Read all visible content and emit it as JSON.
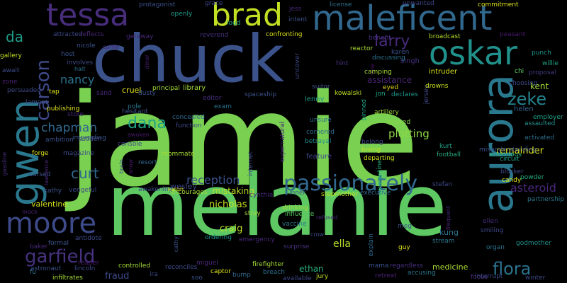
{
  "cloud": {
    "background": "#000000",
    "words": [
      {
        "text": "jamie",
        "color": "#7ad151"
      },
      {
        "text": "melanie",
        "color": "#5ec962"
      },
      {
        "text": "chuck",
        "color": "#3b528b"
      },
      {
        "text": "maleficent",
        "color": "#31688e"
      },
      {
        "text": "brad",
        "color": "#c2df23"
      },
      {
        "text": "tessa",
        "color": "#472d7b"
      },
      {
        "text": "oskar",
        "color": "#21918c"
      },
      {
        "text": "aurora",
        "color": "#2a788e"
      },
      {
        "text": "gwen",
        "color": "#2a788e"
      },
      {
        "text": "moore",
        "color": "#3e4a89"
      },
      {
        "text": "passionately",
        "color": "#31688e"
      },
      {
        "text": "garfield",
        "color": "#46327e"
      },
      {
        "text": "flora",
        "color": "#2c728e"
      },
      {
        "text": "carson",
        "color": "#3e4a89"
      },
      {
        "text": "larry",
        "color": "#472a7a"
      },
      {
        "text": "zeke",
        "color": "#26828e"
      },
      {
        "text": "dana",
        "color": "#20a386"
      },
      {
        "text": "chapman",
        "color": "#31688e"
      },
      {
        "text": "curt",
        "color": "#31688e"
      },
      {
        "text": "nancy",
        "color": "#2c728e"
      },
      {
        "text": "da",
        "color": "#1f9e89"
      },
      {
        "text": "reception",
        "color": "#3b528b"
      },
      {
        "text": "asteroid",
        "color": "#482878"
      },
      {
        "text": "remainder",
        "color": "#dde318"
      },
      {
        "text": "plotting",
        "color": "#90d743"
      },
      {
        "text": "nicholas",
        "color": "#c8e020"
      },
      {
        "text": "craig",
        "color": "#bddf26"
      },
      {
        "text": "ella",
        "color": "#b5de2b"
      },
      {
        "text": "fraud",
        "color": "#3e4a89"
      },
      {
        "text": "kent",
        "color": "#a5db36"
      },
      {
        "text": "helen",
        "color": "#355f8d"
      },
      {
        "text": "kung",
        "color": "#2c728e"
      },
      {
        "text": "ethan",
        "color": "#2ab07f"
      },
      {
        "text": "mistaking",
        "color": "#bddf26"
      },
      {
        "text": "medicine",
        "color": "#addc30"
      },
      {
        "text": "assistance",
        "color": "#482475"
      },
      {
        "text": "library",
        "color": "#a0da39"
      },
      {
        "text": "cruel",
        "color": "#e5e419"
      },
      {
        "text": "wesley",
        "color": "#3f4788"
      },
      {
        "text": "aaron",
        "color": "#dde318"
      },
      {
        "text": "valentine",
        "color": "#d2e21b"
      },
      {
        "text": "jersey",
        "color": "#3e4989"
      },
      {
        "text": "intruder",
        "color": "#d8e219"
      },
      {
        "text": "singh",
        "color": "#46327e"
      },
      {
        "text": "lenny",
        "color": "#1f9a8a"
      },
      {
        "text": "feature",
        "color": "#3f4788"
      },
      {
        "text": "internet",
        "color": "#3e4989"
      },
      {
        "text": "supernatural",
        "color": "#482475"
      },
      {
        "text": "quarantine",
        "color": "#25ac82"
      },
      {
        "text": "betrayal",
        "color": "#228d8d"
      },
      {
        "text": "unsure",
        "color": "#2e6f8e"
      },
      {
        "text": "cornered",
        "color": "#306a8e"
      },
      {
        "text": "artillery",
        "color": "#a0da39"
      },
      {
        "text": "ignored",
        "color": "#86d549"
      },
      {
        "text": "belong",
        "color": "#3f4889"
      },
      {
        "text": "loving",
        "color": "#bddf26"
      },
      {
        "text": "departing",
        "color": "#d0e11c"
      },
      {
        "text": "pinned",
        "color": "#20a386"
      },
      {
        "text": "vow",
        "color": "#471063"
      },
      {
        "text": "eyed",
        "color": "#ddd318"
      },
      {
        "text": "kurt",
        "color": "#20a386"
      },
      {
        "text": "football",
        "color": "#29af7f"
      },
      {
        "text": "misunderstanding",
        "color": "#3b528b"
      },
      {
        "text": "enormous",
        "color": "#31b57b"
      },
      {
        "text": "circuit",
        "color": "#20a386"
      },
      {
        "text": "blocker",
        "color": "#3f4889"
      },
      {
        "text": "candy",
        "color": "#dde318"
      },
      {
        "text": "powder",
        "color": "#25ac82"
      },
      {
        "text": "partnership",
        "color": "#2a788e"
      },
      {
        "text": "employer",
        "color": "#20a386"
      },
      {
        "text": "assaulted",
        "color": "#21918c"
      },
      {
        "text": "activated",
        "color": "#2e6e8e"
      },
      {
        "text": "choosing",
        "color": "#3e4a89"
      },
      {
        "text": "drowns",
        "color": "#c8e020"
      },
      {
        "text": "proposal",
        "color": "#443a83"
      },
      {
        "text": "chi",
        "color": "#5ec962"
      },
      {
        "text": "punch",
        "color": "#1f948c"
      },
      {
        "text": "willie",
        "color": "#20a486"
      },
      {
        "text": "peasant",
        "color": "#481b6d"
      },
      {
        "text": "broadcast",
        "color": "#b5de2b"
      },
      {
        "text": "commitment",
        "color": "#dde318"
      },
      {
        "text": "license",
        "color": "#2c728e"
      },
      {
        "text": "benefit",
        "color": "#46307e"
      },
      {
        "text": "reactor",
        "color": "#a8db34"
      },
      {
        "text": "karen",
        "color": "#3b528b"
      },
      {
        "text": "hint",
        "color": "#46327e"
      },
      {
        "text": "discussing",
        "color": "#2c728e"
      },
      {
        "text": "camping",
        "color": "#a5db36"
      },
      {
        "text": "suitor",
        "color": "#3b528b"
      },
      {
        "text": "kowalski",
        "color": "#c0df25"
      },
      {
        "text": "jon",
        "color": "#22a884"
      },
      {
        "text": "declares",
        "color": "#1f998a"
      },
      {
        "text": "unwanted",
        "color": "#3f4788"
      },
      {
        "text": "grace",
        "color": "#3f4889"
      },
      {
        "text": "protagonist",
        "color": "#3b528b"
      },
      {
        "text": "openly",
        "color": "#1f9a8a"
      },
      {
        "text": "loud",
        "color": "#20a386"
      },
      {
        "text": "intent",
        "color": "#3b528b"
      },
      {
        "text": "jess",
        "color": "#482878"
      },
      {
        "text": "reverend",
        "color": "#46307e"
      },
      {
        "text": "confronting",
        "color": "#dde318"
      },
      {
        "text": "uncover",
        "color": "#3e4a89"
      },
      {
        "text": "diner",
        "color": "#482173"
      },
      {
        "text": "spaceship",
        "color": "#3b528b"
      },
      {
        "text": "principal",
        "color": "#a5db36"
      },
      {
        "text": "editor",
        "color": "#46307e"
      },
      {
        "text": "exam",
        "color": "#2c728e"
      },
      {
        "text": "pole",
        "color": "#2a788e"
      },
      {
        "text": "hesitant",
        "color": "#3b528b"
      },
      {
        "text": "concealed",
        "color": "#31688e"
      },
      {
        "text": "function",
        "color": "#3e4a89"
      },
      {
        "text": "awoken",
        "color": "#481b6d"
      },
      {
        "text": "console",
        "color": "#3e4a89"
      },
      {
        "text": "roommate",
        "color": "#a5db36"
      },
      {
        "text": "resort",
        "color": "#31688e"
      },
      {
        "text": "awakening",
        "color": "#3e4a89"
      },
      {
        "text": "encourages",
        "color": "#a5db36"
      },
      {
        "text": "brain",
        "color": "#3e4a89"
      },
      {
        "text": "snow",
        "color": "#481b6d"
      },
      {
        "text": "cynthia",
        "color": "#472a7a"
      },
      {
        "text": "stray",
        "color": "#a5db36"
      },
      {
        "text": "influence",
        "color": "#5ec962"
      },
      {
        "text": "refused",
        "color": "#482878"
      },
      {
        "text": "vaccine",
        "color": "#2a788e"
      },
      {
        "text": "crow",
        "color": "#3e4a89"
      },
      {
        "text": "surprise",
        "color": "#46327e"
      },
      {
        "text": "drinking",
        "color": "#a5db36"
      },
      {
        "text": "inner",
        "color": "#3b528b"
      },
      {
        "text": "stepmother",
        "color": "#c2df23"
      },
      {
        "text": "executive",
        "color": "#31688e"
      },
      {
        "text": "stefan",
        "color": "#3e4a89"
      },
      {
        "text": "frequent",
        "color": "#482878"
      },
      {
        "text": "ellen",
        "color": "#472d7b"
      },
      {
        "text": "smiling",
        "color": "#3e4a89"
      },
      {
        "text": "stream",
        "color": "#2a788e"
      },
      {
        "text": "organ",
        "color": "#2c728e"
      },
      {
        "text": "godmother",
        "color": "#21918c"
      },
      {
        "text": "meg",
        "color": "#3b528b"
      },
      {
        "text": "explain",
        "color": "#31688e"
      },
      {
        "text": "guy",
        "color": "#dde318"
      },
      {
        "text": "mama",
        "color": "#3b528b"
      },
      {
        "text": "regardless",
        "color": "#46307e"
      },
      {
        "text": "accusing",
        "color": "#2a788e"
      },
      {
        "text": "focus",
        "color": "#482878"
      },
      {
        "text": "interrupt",
        "color": "#3e4a89"
      },
      {
        "text": "winter",
        "color": "#3e4a89"
      },
      {
        "text": "retreat",
        "color": "#482173"
      },
      {
        "text": "jury",
        "color": "#c2df23"
      },
      {
        "text": "available",
        "color": "#3e4a89"
      },
      {
        "text": "breach",
        "color": "#2c728e"
      },
      {
        "text": "firefighter",
        "color": "#a5db36"
      },
      {
        "text": "bump",
        "color": "#31688e"
      },
      {
        "text": "captor",
        "color": "#dde318"
      },
      {
        "text": "soo",
        "color": "#3b528b"
      },
      {
        "text": "miguel",
        "color": "#482878"
      },
      {
        "text": "reconciles",
        "color": "#3e4a89"
      },
      {
        "text": "ira",
        "color": "#3e4a89"
      },
      {
        "text": "controlled",
        "color": "#a5db36"
      },
      {
        "text": "ordering",
        "color": "#21918c"
      },
      {
        "text": "emergency",
        "color": "#482878"
      },
      {
        "text": "cathy",
        "color": "#3b528b"
      },
      {
        "text": "reaper",
        "color": "#481b6d"
      },
      {
        "text": "lincoln",
        "color": "#3e4a89"
      },
      {
        "text": "astronaut",
        "color": "#3b528b"
      },
      {
        "text": "infiltrates",
        "color": "#a5db36"
      },
      {
        "text": "antidote",
        "color": "#3e4a89"
      },
      {
        "text": "formal",
        "color": "#3b528b"
      },
      {
        "text": "baker",
        "color": "#482878"
      },
      {
        "text": "fu",
        "color": "#2c728e"
      },
      {
        "text": "mock",
        "color": "#482173"
      },
      {
        "text": "kathy",
        "color": "#3b528b"
      },
      {
        "text": "vengeful",
        "color": "#3e4a89"
      },
      {
        "text": "cursed",
        "color": "#3b528b"
      },
      {
        "text": "lawrence",
        "color": "#482878"
      },
      {
        "text": "magazine",
        "color": "#3e4a89"
      },
      {
        "text": "forge",
        "color": "#dde318"
      },
      {
        "text": "gasoline",
        "color": "#472d7b"
      },
      {
        "text": "ambition",
        "color": "#3b528b"
      },
      {
        "text": "sudden",
        "color": "#3e4a89"
      },
      {
        "text": "store",
        "color": "#482878"
      },
      {
        "text": "impending",
        "color": "#3b528b"
      },
      {
        "text": "publishing",
        "color": "#dde318"
      },
      {
        "text": "lament",
        "color": "#3b528b"
      },
      {
        "text": "persuaded",
        "color": "#3e4a89"
      },
      {
        "text": "tap",
        "color": "#dde318"
      },
      {
        "text": "sand",
        "color": "#482878"
      },
      {
        "text": "dusty",
        "color": "#3b528b"
      },
      {
        "text": "await",
        "color": "#3e4a89"
      },
      {
        "text": "zone",
        "color": "#482173"
      },
      {
        "text": "halt",
        "color": "#2c728e"
      },
      {
        "text": "gallery",
        "color": "#c2df23"
      },
      {
        "text": "host",
        "color": "#3b528b"
      },
      {
        "text": "involves",
        "color": "#3e4a89"
      },
      {
        "text": "nicole",
        "color": "#3b528b"
      },
      {
        "text": "attracted",
        "color": "#3e4a89"
      },
      {
        "text": "reflects",
        "color": "#482878"
      },
      {
        "text": "getaway",
        "color": "#482878"
      },
      {
        "text": "carrie",
        "color": "#482173"
      }
    ]
  }
}
